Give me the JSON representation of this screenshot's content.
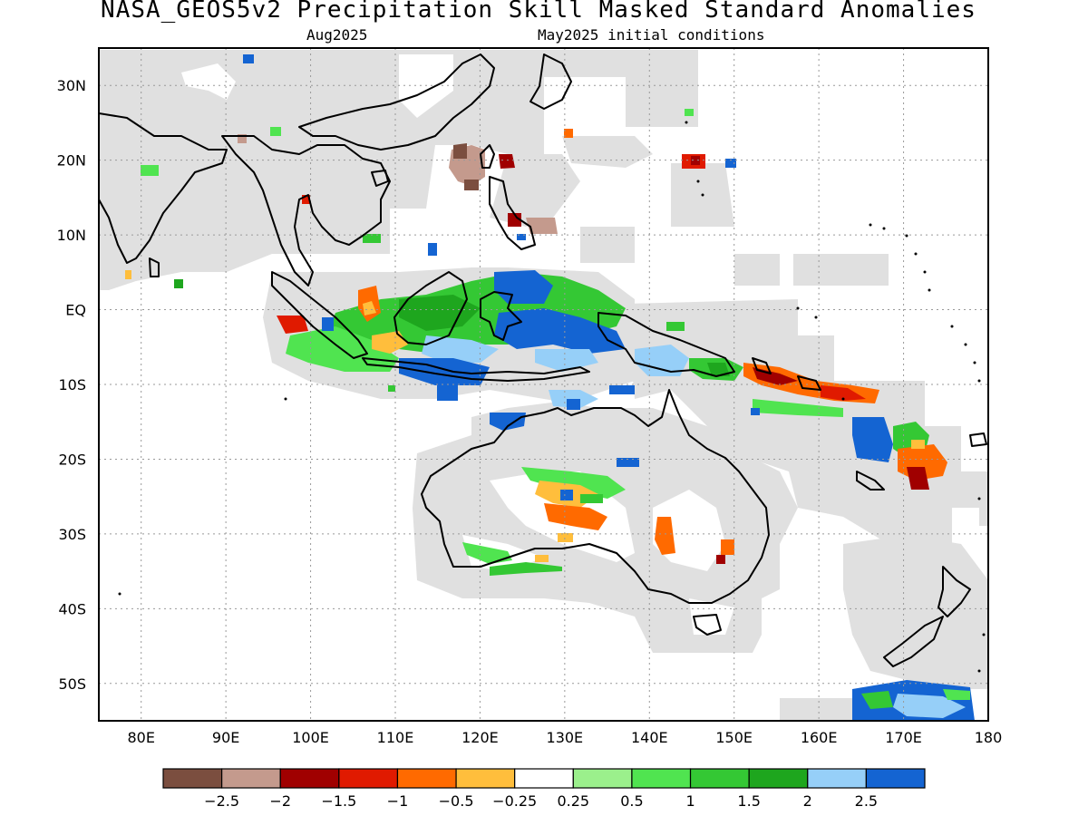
{
  "title": "NASA_GEOS5v2 Precipitation Skill Masked Standard Anomalies",
  "valid_month": "Aug2025",
  "init_conditions": "May2025 initial conditions",
  "map": {
    "lon_labels": [
      "80E",
      "90E",
      "100E",
      "110E",
      "120E",
      "130E",
      "140E",
      "150E",
      "160E",
      "170E",
      "180"
    ],
    "lat_labels": [
      "30N",
      "20N",
      "10N",
      "EQ",
      "10S",
      "20S",
      "30S",
      "40S",
      "50S"
    ],
    "lon_range": [
      75,
      180
    ],
    "lat_range": [
      -55,
      35
    ],
    "grid": true
  },
  "colorbar": {
    "colors": [
      "#7b4e3f",
      "#c49a8d",
      "#a00000",
      "#e01a00",
      "#ff6a00",
      "#ffbe3c",
      "#ffffff",
      "#9bf08c",
      "#50e450",
      "#34c834",
      "#1ea61e",
      "#96cff8",
      "#1464d2"
    ],
    "labels": [
      "-2.5",
      "-2",
      "-1.5",
      "-1",
      "-0.5",
      "-0.25",
      "0.25",
      "0.5",
      "1",
      "1.5",
      "2",
      "2.5"
    ]
  }
}
